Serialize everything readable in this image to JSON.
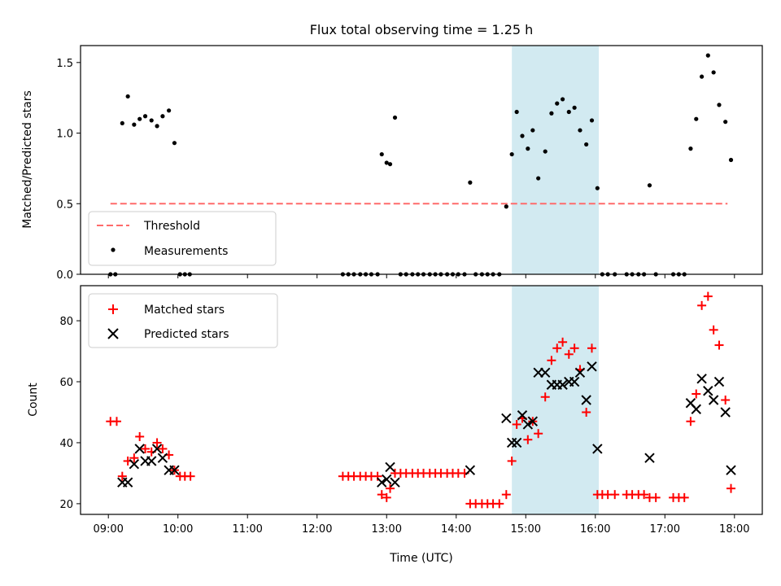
{
  "chart_data": {
    "type": "scatter",
    "title": "Flux total observing time = 1.25 h",
    "shaded_interval": {
      "start_hour": 14.8,
      "end_hour": 16.05,
      "color": "#add8e6"
    },
    "x": {
      "label": "Time (UTC)",
      "range_hours": [
        8.6,
        18.4
      ],
      "ticks": [
        9,
        10,
        11,
        12,
        13,
        14,
        15,
        16,
        17,
        18
      ],
      "tick_labels": [
        "09:00",
        "10:00",
        "11:00",
        "12:00",
        "13:00",
        "14:00",
        "15:00",
        "16:00",
        "17:00",
        "18:00"
      ]
    },
    "panels": [
      {
        "ylabel": "Matched/Predicted stars",
        "ylim": [
          0,
          1.62
        ],
        "yticks": [
          0.0,
          0.5,
          1.0,
          1.5
        ],
        "ytick_labels": [
          "0.0",
          "0.5",
          "1.0",
          "1.5"
        ],
        "legend_position": "lower-left",
        "threshold": {
          "name": "Threshold",
          "value": 0.5,
          "x_range": [
            9.03,
            17.9
          ],
          "color": "#ff6b6b"
        },
        "series": [
          {
            "name": "Measurements",
            "marker": "dot",
            "color": "#000000",
            "points": [
              [
                9.03,
                0.0
              ],
              [
                9.1,
                0.0
              ],
              [
                9.2,
                1.07
              ],
              [
                9.28,
                1.26
              ],
              [
                9.37,
                1.06
              ],
              [
                9.45,
                1.1
              ],
              [
                9.53,
                1.12
              ],
              [
                9.62,
                1.09
              ],
              [
                9.7,
                1.05
              ],
              [
                9.78,
                1.12
              ],
              [
                9.87,
                1.16
              ],
              [
                9.95,
                0.93
              ],
              [
                10.03,
                0.0
              ],
              [
                10.1,
                0.0
              ],
              [
                10.17,
                0.0
              ],
              [
                12.37,
                0.0
              ],
              [
                12.45,
                0.0
              ],
              [
                12.53,
                0.0
              ],
              [
                12.62,
                0.0
              ],
              [
                12.7,
                0.0
              ],
              [
                12.78,
                0.0
              ],
              [
                12.87,
                0.0
              ],
              [
                12.93,
                0.85
              ],
              [
                13.0,
                0.79
              ],
              [
                13.05,
                0.78
              ],
              [
                13.12,
                1.11
              ],
              [
                13.2,
                0.0
              ],
              [
                13.28,
                0.0
              ],
              [
                13.37,
                0.0
              ],
              [
                13.45,
                0.0
              ],
              [
                13.53,
                0.0
              ],
              [
                13.62,
                0.0
              ],
              [
                13.7,
                0.0
              ],
              [
                13.78,
                0.0
              ],
              [
                13.87,
                0.0
              ],
              [
                13.95,
                0.0
              ],
              [
                14.03,
                0.0
              ],
              [
                14.12,
                0.0
              ],
              [
                14.2,
                0.65
              ],
              [
                14.28,
                0.0
              ],
              [
                14.37,
                0.0
              ],
              [
                14.45,
                0.0
              ],
              [
                14.53,
                0.0
              ],
              [
                14.62,
                0.0
              ],
              [
                14.72,
                0.48
              ],
              [
                14.8,
                0.85
              ],
              [
                14.87,
                1.15
              ],
              [
                14.95,
                0.98
              ],
              [
                15.03,
                0.89
              ],
              [
                15.1,
                1.02
              ],
              [
                15.18,
                0.68
              ],
              [
                15.28,
                0.87
              ],
              [
                15.37,
                1.14
              ],
              [
                15.45,
                1.21
              ],
              [
                15.53,
                1.24
              ],
              [
                15.62,
                1.15
              ],
              [
                15.7,
                1.18
              ],
              [
                15.78,
                1.02
              ],
              [
                15.87,
                0.92
              ],
              [
                15.95,
                1.09
              ],
              [
                16.03,
                0.61
              ],
              [
                16.1,
                0.0
              ],
              [
                16.18,
                0.0
              ],
              [
                16.28,
                0.0
              ],
              [
                16.45,
                0.0
              ],
              [
                16.53,
                0.0
              ],
              [
                16.62,
                0.0
              ],
              [
                16.7,
                0.0
              ],
              [
                16.78,
                0.63
              ],
              [
                16.87,
                0.0
              ],
              [
                17.12,
                0.0
              ],
              [
                17.2,
                0.0
              ],
              [
                17.28,
                0.0
              ],
              [
                17.37,
                0.89
              ],
              [
                17.45,
                1.1
              ],
              [
                17.53,
                1.4
              ],
              [
                17.62,
                1.55
              ],
              [
                17.7,
                1.43
              ],
              [
                17.78,
                1.2
              ],
              [
                17.87,
                1.08
              ],
              [
                17.95,
                0.81
              ]
            ]
          }
        ]
      },
      {
        "ylabel": "Count",
        "ylim": [
          16.5,
          91.5
        ],
        "yticks": [
          20,
          40,
          60,
          80
        ],
        "ytick_labels": [
          "20",
          "40",
          "60",
          "80"
        ],
        "legend_position": "upper-left",
        "series": [
          {
            "name": "Matched stars",
            "marker": "plus",
            "color": "#ff0000",
            "points": [
              [
                9.03,
                47
              ],
              [
                9.12,
                47
              ],
              [
                9.2,
                29
              ],
              [
                9.28,
                34
              ],
              [
                9.37,
                35
              ],
              [
                9.45,
                42
              ],
              [
                9.53,
                38
              ],
              [
                9.62,
                37
              ],
              [
                9.7,
                40
              ],
              [
                9.78,
                38
              ],
              [
                9.87,
                36
              ],
              [
                9.95,
                31
              ],
              [
                10.03,
                29
              ],
              [
                10.1,
                29
              ],
              [
                10.18,
                29
              ],
              [
                12.37,
                29
              ],
              [
                12.45,
                29
              ],
              [
                12.53,
                29
              ],
              [
                12.62,
                29
              ],
              [
                12.7,
                29
              ],
              [
                12.78,
                29
              ],
              [
                12.87,
                29
              ],
              [
                12.93,
                23
              ],
              [
                13.0,
                22
              ],
              [
                13.05,
                25
              ],
              [
                13.12,
                30
              ],
              [
                13.2,
                30
              ],
              [
                13.28,
                30
              ],
              [
                13.37,
                30
              ],
              [
                13.45,
                30
              ],
              [
                13.53,
                30
              ],
              [
                13.62,
                30
              ],
              [
                13.7,
                30
              ],
              [
                13.78,
                30
              ],
              [
                13.87,
                30
              ],
              [
                13.95,
                30
              ],
              [
                14.03,
                30
              ],
              [
                14.12,
                30
              ],
              [
                14.2,
                20
              ],
              [
                14.28,
                20
              ],
              [
                14.37,
                20
              ],
              [
                14.45,
                20
              ],
              [
                14.53,
                20
              ],
              [
                14.62,
                20
              ],
              [
                14.72,
                23
              ],
              [
                14.8,
                34
              ],
              [
                14.87,
                46
              ],
              [
                14.95,
                48
              ],
              [
                15.03,
                41
              ],
              [
                15.1,
                47
              ],
              [
                15.18,
                43
              ],
              [
                15.28,
                55
              ],
              [
                15.37,
                67
              ],
              [
                15.45,
                71
              ],
              [
                15.53,
                73
              ],
              [
                15.62,
                69
              ],
              [
                15.7,
                71
              ],
              [
                15.78,
                64
              ],
              [
                15.87,
                50
              ],
              [
                15.95,
                71
              ],
              [
                16.03,
                23
              ],
              [
                16.1,
                23
              ],
              [
                16.18,
                23
              ],
              [
                16.28,
                23
              ],
              [
                16.45,
                23
              ],
              [
                16.53,
                23
              ],
              [
                16.62,
                23
              ],
              [
                16.7,
                23
              ],
              [
                16.78,
                22
              ],
              [
                16.87,
                22
              ],
              [
                17.12,
                22
              ],
              [
                17.2,
                22
              ],
              [
                17.28,
                22
              ],
              [
                17.37,
                47
              ],
              [
                17.45,
                56
              ],
              [
                17.53,
                85
              ],
              [
                17.62,
                88
              ],
              [
                17.7,
                77
              ],
              [
                17.78,
                72
              ],
              [
                17.87,
                54
              ],
              [
                17.95,
                25
              ]
            ]
          },
          {
            "name": "Predicted stars",
            "marker": "x",
            "color": "#000000",
            "points": [
              [
                9.2,
                27
              ],
              [
                9.28,
                27
              ],
              [
                9.37,
                33
              ],
              [
                9.45,
                38
              ],
              [
                9.53,
                34
              ],
              [
                9.62,
                34
              ],
              [
                9.7,
                38
              ],
              [
                9.78,
                35
              ],
              [
                9.87,
                31
              ],
              [
                9.95,
                31
              ],
              [
                12.93,
                27
              ],
              [
                13.0,
                28
              ],
              [
                13.05,
                32
              ],
              [
                13.12,
                27
              ],
              [
                14.2,
                31
              ],
              [
                14.72,
                48
              ],
              [
                14.8,
                40
              ],
              [
                14.87,
                40
              ],
              [
                14.95,
                49
              ],
              [
                15.03,
                46
              ],
              [
                15.1,
                47
              ],
              [
                15.18,
                63
              ],
              [
                15.28,
                63
              ],
              [
                15.37,
                59
              ],
              [
                15.45,
                59
              ],
              [
                15.53,
                59
              ],
              [
                15.62,
                60
              ],
              [
                15.7,
                60
              ],
              [
                15.78,
                63
              ],
              [
                15.87,
                54
              ],
              [
                15.95,
                65
              ],
              [
                16.03,
                38
              ],
              [
                16.78,
                35
              ],
              [
                17.37,
                53
              ],
              [
                17.45,
                51
              ],
              [
                17.53,
                61
              ],
              [
                17.62,
                57
              ],
              [
                17.7,
                54
              ],
              [
                17.78,
                60
              ],
              [
                17.87,
                50
              ],
              [
                17.95,
                31
              ]
            ]
          }
        ]
      }
    ]
  }
}
